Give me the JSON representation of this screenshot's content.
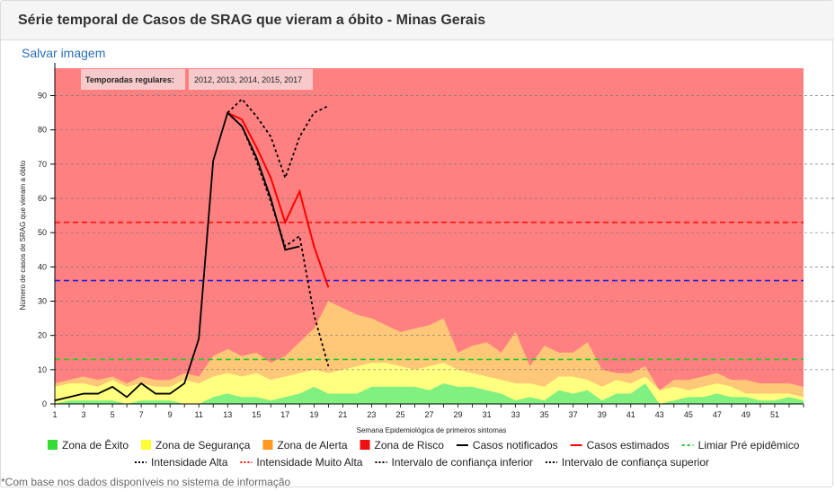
{
  "header": {
    "title": "Série temporal de Casos de SRAG que vieram a óbito - Minas Gerais"
  },
  "actions": {
    "save_label": "Salvar imagem"
  },
  "footnote": "*Com base nos dados disponíveis no sistema de informação",
  "colors": {
    "risco": "#ff8080",
    "alerta": "#ffc878",
    "seguranca": "#ffff80",
    "exito": "#80f080",
    "notificados": "#000000",
    "estimados": "#ff0000",
    "pre_epidemico": "#22cc22",
    "alta": "#2222dd",
    "muito_alta": "#ff1111"
  },
  "chart_data": {
    "type": "area",
    "xlabel": "Semana Epidemiológica de primeiros sintomas",
    "ylabel": "Número de casos de SRAG que vieram a óbito",
    "xlim": [
      1,
      53
    ],
    "ylim": [
      0,
      98
    ],
    "x_ticks": [
      1,
      3,
      5,
      7,
      9,
      11,
      13,
      15,
      17,
      19,
      21,
      23,
      25,
      27,
      29,
      31,
      33,
      35,
      37,
      39,
      41,
      43,
      45,
      47,
      49,
      51
    ],
    "y_ticks": [
      0,
      10,
      20,
      30,
      40,
      50,
      60,
      70,
      80,
      90
    ],
    "grid": "horizontal dashed",
    "annotation": {
      "label": "Temporadas regulares:",
      "value": "2012, 2013, 2014, 2015, 2017"
    },
    "zones": {
      "weeks": [
        1,
        2,
        3,
        4,
        5,
        6,
        7,
        8,
        9,
        10,
        11,
        12,
        13,
        14,
        15,
        16,
        17,
        18,
        19,
        20,
        21,
        22,
        23,
        24,
        25,
        26,
        27,
        28,
        29,
        30,
        31,
        32,
        33,
        34,
        35,
        36,
        37,
        38,
        39,
        40,
        41,
        42,
        43,
        44,
        45,
        46,
        47,
        48,
        49,
        50,
        51,
        52,
        53
      ],
      "exito": [
        0,
        1,
        1,
        1,
        1,
        0,
        1,
        1,
        1,
        0,
        0,
        2,
        3,
        2,
        2,
        1,
        2,
        3,
        5,
        3,
        3,
        3,
        5,
        5,
        5,
        5,
        4,
        6,
        5,
        5,
        4,
        3,
        1,
        2,
        1,
        4,
        3,
        4,
        1,
        3,
        3,
        6,
        0,
        1,
        2,
        2,
        3,
        2,
        2,
        1,
        1,
        2,
        1
      ],
      "seguranca": [
        5,
        6,
        6,
        5,
        7,
        5,
        6,
        5,
        5,
        7,
        6,
        8,
        9,
        8,
        9,
        7,
        8,
        9,
        10,
        9,
        10,
        11,
        12,
        12,
        11,
        10,
        11,
        12,
        10,
        9,
        8,
        7,
        6,
        6,
        5,
        8,
        8,
        7,
        5,
        7,
        6,
        8,
        4,
        5,
        4,
        5,
        6,
        5,
        3,
        3,
        3,
        3,
        2
      ],
      "alerta": [
        6,
        7,
        8,
        7,
        8,
        6,
        8,
        7,
        7,
        9,
        8,
        14,
        16,
        14,
        15,
        12,
        14,
        18,
        22,
        30,
        28,
        26,
        25,
        23,
        21,
        22,
        23,
        25,
        15,
        17,
        18,
        15,
        21,
        11,
        17,
        15,
        15,
        18,
        10,
        9,
        9,
        11,
        4,
        7,
        7,
        8,
        9,
        7,
        7,
        6,
        6,
        6,
        5
      ],
      "risco": [
        98,
        98,
        98,
        98,
        98,
        98,
        98,
        98,
        98,
        98,
        98,
        98,
        98,
        98,
        98,
        98,
        98,
        98,
        98,
        98,
        98,
        98,
        98,
        98,
        98,
        98,
        98,
        98,
        98,
        98,
        98,
        98,
        98,
        98,
        98,
        98,
        98,
        98,
        98,
        98,
        98,
        98,
        98,
        98,
        98,
        98,
        98,
        98,
        98,
        98,
        98,
        98,
        98
      ]
    },
    "thresholds": [
      {
        "name": "Limiar Pré epidêmico",
        "value": 13
      },
      {
        "name": "Intensidade Alta",
        "value": 36
      },
      {
        "name": "Intensidade Muito Alta",
        "value": 53
      }
    ],
    "series": [
      {
        "name": "Casos notificados",
        "x": [
          1,
          2,
          3,
          4,
          5,
          6,
          7,
          8,
          9,
          10,
          11,
          12,
          13,
          14,
          15,
          16,
          17,
          18
        ],
        "values": [
          1,
          2,
          3,
          3,
          5,
          2,
          6,
          3,
          3,
          6,
          19,
          71,
          85,
          81,
          72,
          60,
          45,
          46
        ]
      },
      {
        "name": "Casos estimados",
        "x": [
          13,
          14,
          15,
          16,
          17,
          18,
          19,
          20
        ],
        "values": [
          85,
          83,
          75,
          66,
          53,
          62,
          46,
          34
        ]
      },
      {
        "name": "Intervalo de confiança inferior",
        "x": [
          13,
          14,
          15,
          16,
          17,
          18,
          19,
          20
        ],
        "values": [
          85,
          81,
          71,
          59,
          46,
          49,
          26,
          11
        ]
      },
      {
        "name": "Intervalo de confiança superior",
        "x": [
          13,
          14,
          15,
          16,
          17,
          18,
          19,
          20
        ],
        "values": [
          85,
          89,
          84,
          78,
          66,
          78,
          85,
          87
        ]
      }
    ],
    "legend": [
      {
        "name": "Zona de Êxito",
        "type": "square",
        "color": "#33dd33"
      },
      {
        "name": "Zona de Segurança",
        "type": "square",
        "color": "#ffff33"
      },
      {
        "name": "Zona de Alerta",
        "type": "square",
        "color": "#ff9922"
      },
      {
        "name": "Zona de Risco",
        "type": "square",
        "color": "#ee1111"
      },
      {
        "name": "Casos notificados",
        "type": "line",
        "color": "#000000",
        "dash": ""
      },
      {
        "name": "Casos estimados",
        "type": "line",
        "color": "#ff0000",
        "dash": ""
      },
      {
        "name": "Limiar Pré epidêmico",
        "type": "line",
        "color": "#22cc22",
        "dash": "3,3"
      },
      {
        "name": "Intensidade Alta",
        "type": "line",
        "color": "#000000",
        "dash": "2,2"
      },
      {
        "name": "Intensidade Muito Alta",
        "type": "line",
        "color": "#ff1111",
        "dash": "2,2"
      },
      {
        "name": "Intervalo de confiança inferior",
        "type": "line",
        "color": "#000000",
        "dash": "2,2"
      },
      {
        "name": "Intervalo de confiança superior",
        "type": "line",
        "color": "#000000",
        "dash": "2,2"
      }
    ],
    "legend_position": "bottom"
  }
}
